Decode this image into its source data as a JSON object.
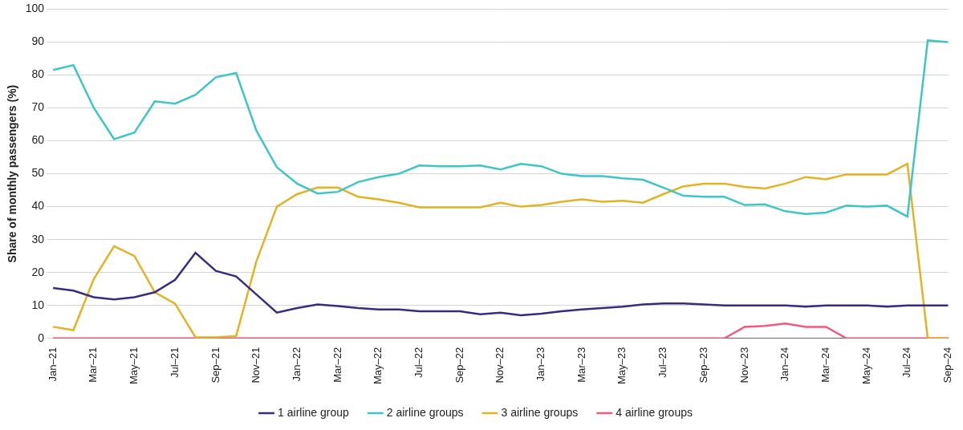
{
  "chart_data": {
    "type": "line",
    "y_label": "Share of monthly passengers (%)",
    "categories": [
      "Jan–21",
      null,
      "Mar–21",
      null,
      "May–21",
      null,
      "Jul–21",
      null,
      "Sep–21",
      null,
      "Nov–21",
      null,
      "Jan–22",
      null,
      "Mar–22",
      null,
      "May–22",
      null,
      "Jul–22",
      null,
      "Sep–22",
      null,
      "Nov–22",
      null,
      "Jan–23",
      null,
      "Mar–23",
      null,
      "May–23",
      null,
      "Jul–23",
      null,
      "Sep–23",
      null,
      "Nov–23",
      null,
      "Jan–24",
      null,
      "Mar–24",
      null,
      "May–24",
      null,
      "Jul–24",
      null,
      "Sep–24"
    ],
    "series": [
      {
        "name": "1 airline group",
        "color": "#3b2a80",
        "values": [
          15.3,
          14.5,
          12.5,
          11.8,
          12.5,
          14,
          17.8,
          26,
          20.5,
          18.8,
          13.3,
          7.8,
          9.2,
          10.3,
          9.8,
          9.2,
          8.8,
          8.8,
          8.2,
          8.2,
          8.2,
          7.3,
          7.8,
          7,
          7.5,
          8.2,
          8.8,
          9.2,
          9.6,
          10.3,
          10.6,
          10.6,
          10.3,
          10,
          10,
          10,
          10,
          9.6,
          10,
          10,
          10,
          9.6,
          10,
          10,
          10
        ]
      },
      {
        "name": "2 airline groups",
        "color": "#3ec6c6",
        "values": [
          81.5,
          83,
          70,
          60.5,
          62.5,
          72,
          71.3,
          74,
          79.3,
          80.6,
          63,
          52,
          47,
          44,
          44.5,
          47.5,
          49,
          50,
          52.5,
          52.3,
          52.3,
          52.5,
          51.3,
          53,
          52.3,
          50,
          49.3,
          49.3,
          48.6,
          48.2,
          45.8,
          43.3,
          43,
          43,
          40.5,
          40.7,
          38.6,
          37.8,
          38.2,
          40.3,
          40,
          40.3,
          37,
          90.5,
          90
        ]
      },
      {
        "name": "3 airline groups",
        "color": "#e2b324",
        "values": [
          3.5,
          2.5,
          18,
          28,
          25,
          14,
          10.5,
          0.3,
          0.3,
          0.7,
          23.5,
          40,
          43.8,
          45.8,
          45.8,
          43,
          42.2,
          41.2,
          39.8,
          39.8,
          39.8,
          39.8,
          41.2,
          40,
          40.5,
          41.5,
          42.2,
          41.5,
          41.8,
          41.2,
          43.8,
          46.2,
          47,
          47,
          46,
          45.5,
          47,
          49,
          48.3,
          49.8,
          49.8,
          49.8,
          53,
          0,
          0
        ]
      },
      {
        "name": "4 airline groups",
        "color": "#ef5a7f",
        "values": [
          0,
          0,
          0,
          0,
          0,
          0,
          0,
          0,
          0,
          0,
          0,
          0,
          0,
          0,
          0,
          0,
          0,
          0,
          0,
          0,
          0,
          0,
          0,
          0,
          0,
          0,
          0,
          0,
          0,
          0,
          0,
          0,
          0,
          0,
          3.5,
          3.8,
          4.5,
          3.5,
          3.5,
          0,
          0,
          0,
          0,
          0,
          0
        ]
      }
    ],
    "ylim": [
      0,
      100
    ],
    "yticks": [
      0,
      10,
      20,
      30,
      40,
      50,
      60,
      70,
      80,
      90,
      100
    ],
    "grid": true,
    "legend": "bottom"
  }
}
